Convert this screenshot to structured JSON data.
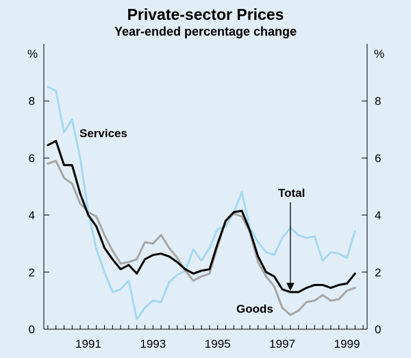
{
  "chart_data": {
    "type": "line",
    "title": "Private-sector Prices",
    "subtitle": "Year-ended percentage change",
    "unit_left": "%",
    "unit_right": "%",
    "ylim": [
      0,
      10
    ],
    "yticks": [
      0,
      2,
      4,
      6,
      8
    ],
    "xlim": [
      1989.625,
      1999.625
    ],
    "xticks": [
      1991,
      1993,
      1995,
      1997,
      1999
    ],
    "xtick_labels": [
      "1991",
      "1993",
      "1995",
      "1997",
      "1999"
    ],
    "grid": false,
    "series": [
      {
        "name": "Services",
        "label": "Services",
        "color": "#a6d8f0",
        "points": [
          [
            1989.75,
            8.5
          ],
          [
            1990.0,
            8.35
          ],
          [
            1990.25,
            6.9
          ],
          [
            1990.5,
            7.35
          ],
          [
            1990.75,
            6.0
          ],
          [
            1991.0,
            4.1
          ],
          [
            1991.25,
            2.8
          ],
          [
            1991.5,
            2.0
          ],
          [
            1991.75,
            1.3
          ],
          [
            1992.0,
            1.4
          ],
          [
            1992.25,
            1.7
          ],
          [
            1992.5,
            0.35
          ],
          [
            1992.75,
            0.75
          ],
          [
            1993.0,
            1.0
          ],
          [
            1993.25,
            0.95
          ],
          [
            1993.5,
            1.65
          ],
          [
            1993.75,
            1.9
          ],
          [
            1994.0,
            2.05
          ],
          [
            1994.25,
            2.8
          ],
          [
            1994.5,
            2.4
          ],
          [
            1994.75,
            2.85
          ],
          [
            1995.0,
            3.5
          ],
          [
            1995.25,
            3.6
          ],
          [
            1995.5,
            4.1
          ],
          [
            1995.75,
            4.8
          ],
          [
            1996.0,
            3.55
          ],
          [
            1996.25,
            3.05
          ],
          [
            1996.5,
            2.7
          ],
          [
            1996.75,
            2.6
          ],
          [
            1997.0,
            3.2
          ],
          [
            1997.25,
            3.55
          ],
          [
            1997.5,
            3.3
          ],
          [
            1997.75,
            3.2
          ],
          [
            1998.0,
            3.25
          ],
          [
            1998.25,
            2.4
          ],
          [
            1998.5,
            2.7
          ],
          [
            1998.75,
            2.65
          ],
          [
            1999.0,
            2.5
          ],
          [
            1999.25,
            3.45
          ]
        ]
      },
      {
        "name": "Goods",
        "label": "Goods",
        "color": "#a6a6a6",
        "points": [
          [
            1989.75,
            5.8
          ],
          [
            1990.0,
            5.9
          ],
          [
            1990.25,
            5.3
          ],
          [
            1990.5,
            5.1
          ],
          [
            1990.75,
            4.4
          ],
          [
            1991.0,
            4.1
          ],
          [
            1991.25,
            3.95
          ],
          [
            1991.5,
            3.3
          ],
          [
            1991.75,
            2.75
          ],
          [
            1992.0,
            2.3
          ],
          [
            1992.25,
            2.35
          ],
          [
            1992.5,
            2.45
          ],
          [
            1992.75,
            3.05
          ],
          [
            1993.0,
            3.0
          ],
          [
            1993.25,
            3.3
          ],
          [
            1993.5,
            2.85
          ],
          [
            1993.75,
            2.5
          ],
          [
            1994.0,
            2.05
          ],
          [
            1994.25,
            1.7
          ],
          [
            1994.5,
            1.85
          ],
          [
            1994.75,
            1.95
          ],
          [
            1995.0,
            2.9
          ],
          [
            1995.25,
            3.8
          ],
          [
            1995.5,
            4.05
          ],
          [
            1995.75,
            3.95
          ],
          [
            1996.0,
            3.4
          ],
          [
            1996.25,
            2.35
          ],
          [
            1996.5,
            1.85
          ],
          [
            1996.75,
            1.5
          ],
          [
            1997.0,
            0.75
          ],
          [
            1997.25,
            0.5
          ],
          [
            1997.5,
            0.65
          ],
          [
            1997.75,
            0.95
          ],
          [
            1998.0,
            1.0
          ],
          [
            1998.25,
            1.2
          ],
          [
            1998.5,
            1.0
          ],
          [
            1998.75,
            1.05
          ],
          [
            1999.0,
            1.35
          ],
          [
            1999.25,
            1.45
          ]
        ]
      },
      {
        "name": "Total",
        "label": "Total",
        "color": "#000000",
        "points": [
          [
            1989.75,
            6.45
          ],
          [
            1990.0,
            6.6
          ],
          [
            1990.25,
            5.75
          ],
          [
            1990.5,
            5.75
          ],
          [
            1990.75,
            4.75
          ],
          [
            1991.0,
            4.0
          ],
          [
            1991.25,
            3.6
          ],
          [
            1991.5,
            2.85
          ],
          [
            1991.75,
            2.45
          ],
          [
            1992.0,
            2.1
          ],
          [
            1992.25,
            2.25
          ],
          [
            1992.5,
            1.95
          ],
          [
            1992.75,
            2.45
          ],
          [
            1993.0,
            2.6
          ],
          [
            1993.25,
            2.65
          ],
          [
            1993.5,
            2.55
          ],
          [
            1993.75,
            2.35
          ],
          [
            1994.0,
            2.1
          ],
          [
            1994.25,
            1.95
          ],
          [
            1994.5,
            2.05
          ],
          [
            1994.75,
            2.1
          ],
          [
            1995.0,
            3.0
          ],
          [
            1995.25,
            3.8
          ],
          [
            1995.5,
            4.1
          ],
          [
            1995.75,
            4.15
          ],
          [
            1996.0,
            3.45
          ],
          [
            1996.25,
            2.55
          ],
          [
            1996.5,
            2.0
          ],
          [
            1996.75,
            1.85
          ],
          [
            1997.0,
            1.4
          ],
          [
            1997.25,
            1.3
          ],
          [
            1997.5,
            1.3
          ],
          [
            1997.75,
            1.45
          ],
          [
            1998.0,
            1.55
          ],
          [
            1998.25,
            1.55
          ],
          [
            1998.5,
            1.45
          ],
          [
            1998.75,
            1.55
          ],
          [
            1999.0,
            1.6
          ],
          [
            1999.25,
            1.95
          ]
        ]
      }
    ],
    "annotations": [
      {
        "series": "Total",
        "text": "Total",
        "arrow_to": [
          1997.25,
          1.3
        ]
      }
    ]
  }
}
